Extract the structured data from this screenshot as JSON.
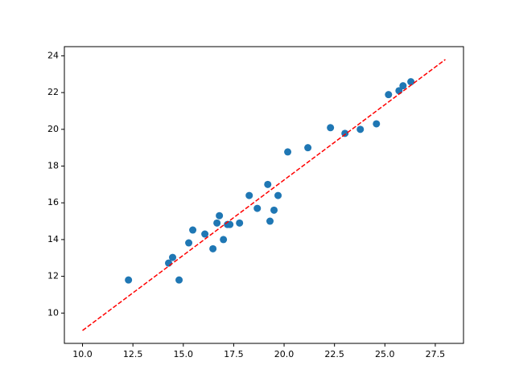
{
  "chart_data": {
    "type": "scatter",
    "x": [
      12.28,
      14.27,
      14.47,
      14.79,
      15.27,
      15.47,
      16.07,
      16.47,
      16.67,
      16.79,
      16.99,
      17.19,
      17.31,
      17.79,
      18.27,
      18.67,
      19.19,
      19.3,
      19.5,
      19.7,
      20.18,
      21.18,
      22.3,
      23.02,
      23.78,
      24.58,
      25.18,
      25.7,
      25.9,
      26.29
    ],
    "values": [
      11.8,
      12.72,
      13.03,
      11.8,
      13.82,
      14.52,
      14.3,
      13.5,
      14.9,
      15.3,
      14.0,
      14.82,
      14.82,
      14.9,
      16.4,
      15.7,
      17.0,
      15.0,
      15.6,
      16.4,
      18.77,
      19.0,
      20.09,
      19.78,
      20.0,
      20.3,
      21.89,
      22.1,
      22.37,
      22.59
    ],
    "color": "#1f77b4",
    "fit_line": {
      "x": [
        10,
        28
      ],
      "values": [
        9.05,
        23.8
      ],
      "color": "#ff0000",
      "dashed": true
    },
    "xlim": [
      9.1,
      28.9
    ],
    "ylim": [
      8.35,
      24.5
    ],
    "xticks": [
      {
        "value": 10,
        "label": "10.0"
      },
      {
        "value": 12.5,
        "label": "12.5"
      },
      {
        "value": 15,
        "label": "15.0"
      },
      {
        "value": 17.5,
        "label": "17.5"
      },
      {
        "value": 20,
        "label": "20.0"
      },
      {
        "value": 22.5,
        "label": "22.5"
      },
      {
        "value": 25,
        "label": "25.0"
      },
      {
        "value": 27.5,
        "label": "27.5"
      }
    ],
    "yticks": [
      10,
      12,
      14,
      16,
      18,
      20,
      22,
      24
    ]
  }
}
